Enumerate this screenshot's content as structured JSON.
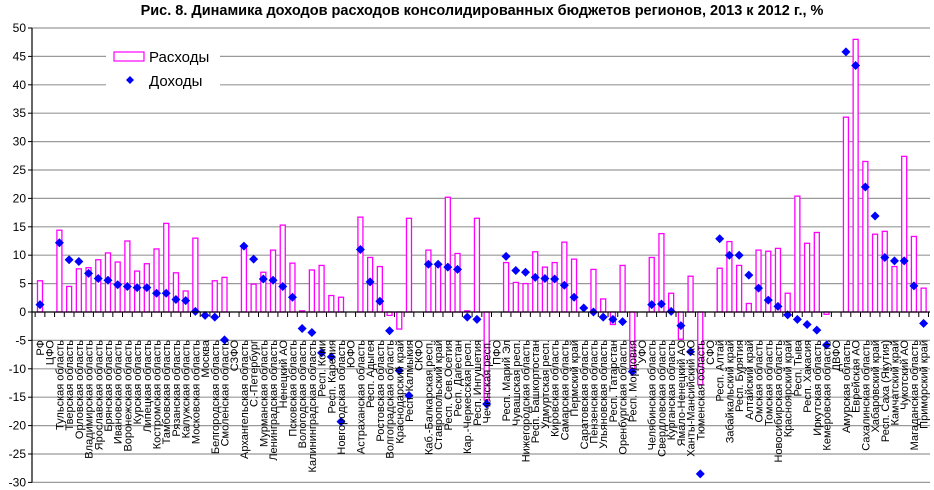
{
  "chart_data": {
    "type": "bar",
    "title": "Рис. 8. Динамика доходов  расходов консолидированных бюджетов регионов, 2013 к 2012 г., %",
    "xlabel": "",
    "ylabel": "",
    "ylim": [
      -30,
      50
    ],
    "yticks": [
      -30,
      -25,
      -20,
      -15,
      -10,
      -5,
      0,
      5,
      10,
      15,
      20,
      25,
      30,
      35,
      40,
      45,
      50
    ],
    "grid": true,
    "legend_position": "top-left",
    "colors": {
      "bars": "#FF00FF",
      "markers": "#0000FF",
      "grid": "#999999"
    },
    "categories": [
      "РФ",
      "ЦФО",
      "Тульская область",
      "Тверская область",
      "Орловская область",
      "Владимирская область",
      "Ярославская область",
      "Брянская область",
      "Ивановская область",
      "Воронежская область",
      "Курская область",
      "Липецкая область",
      "Костромская область",
      "Тамбовская область",
      "Рязанская область",
      "Калужская область",
      "Московская область",
      "Москва",
      "Белгородская область",
      "Смоленская область",
      "СЗФО",
      "Архангельская область",
      "С.-Петербург",
      "Мурманская область",
      "Ленинградская область",
      "Ненецкий АО",
      "Псковская область",
      "Вологодская область",
      "Калининградская область",
      "Респ. Коми",
      "Респ. Карелия",
      "Новгородская область",
      "ЮФО",
      "Астраханская область",
      "Респ. Адыгея",
      "Ростовская область",
      "Волгоградская область",
      "Краснодарский край",
      "Респ. Калмыкия",
      "СКФО",
      "Каб.-Балкарская респ.",
      "Ставропольский край",
      "Респ. Сев.Осетия",
      "Респ. Дагестан",
      "Кар.-Черкесская респ.",
      "Респ. Ингушетия",
      "Чеченская респ.",
      "ПФО",
      "Респ. Марий Эл",
      "Чувашская респ.",
      "Нижегородская область",
      "Респ. Башкортостан",
      "Удмуртская респ.",
      "Кировская область",
      "Самарская область",
      "Пермский край",
      "Саратовская область",
      "Пензенская область",
      "Ульяновская область",
      "Респ. Татарстан",
      "Оренбургская область",
      "Респ. Мордовия",
      "УФО",
      "Челябинская область",
      "Свердловская область",
      "Курганская область",
      "Ямало-Ненецкий АО",
      "Ханты-Мансийский АО",
      "Тюменская область",
      "СФО",
      "Респ. Алтай",
      "Забайкальский край",
      "Респ. Бурятия",
      "Алтайский край",
      "Омская область",
      "Томская область",
      "Новосибирская область",
      "Красноярский край",
      "Респ. Тыва",
      "Респ. Хакасия",
      "Иркутская область",
      "Кемеровская область",
      "ДВФО",
      "Амурская область",
      "Еврейская АО",
      "Сахалинская область",
      "Хабаровский край",
      "Респ. Саха (Якутия)",
      "Камчатский край",
      "Чукотский АО",
      "Магаданская область",
      "Приморский край"
    ],
    "series": [
      {
        "name": "Расходы",
        "kind": "bar",
        "values": [
          5.5,
          null,
          14.4,
          4.5,
          7.6,
          7.8,
          9.2,
          10.4,
          8.8,
          12.5,
          7.2,
          8.5,
          11.1,
          15.6,
          6.9,
          3.7,
          13.0,
          0,
          5.5,
          6.1,
          null,
          11.6,
          4.9,
          7.0,
          10.9,
          15.3,
          8.6,
          0.2,
          7.4,
          8.2,
          2.9,
          2.6,
          null,
          16.7,
          9.6,
          8.0,
          -0.6,
          -3.0,
          16.5,
          null,
          10.9,
          8.3,
          20.2,
          10.3,
          0.2,
          16.5,
          -15.5,
          null,
          8.7,
          5.2,
          5.0,
          10.6,
          7.9,
          8.7,
          12.3,
          9.3,
          0,
          7.5,
          2.3,
          -2.2,
          8.2,
          -10.2,
          null,
          9.6,
          13.8,
          3.3,
          -4.8,
          6.3,
          -12.8,
          null,
          7.7,
          12.4,
          8.2,
          1.5,
          10.9,
          10.7,
          11.2,
          3.3,
          20.4,
          12.1,
          14.0,
          -0.4,
          null,
          34.3,
          48.0,
          26.5,
          13.7,
          14.2,
          8.0,
          27.4,
          13.3,
          4.2
        ]
      },
      {
        "name": "Доходы",
        "kind": "marker",
        "values": [
          1.3,
          null,
          12.2,
          9.2,
          8.9,
          6.8,
          5.9,
          5.6,
          4.8,
          4.5,
          4.3,
          4.3,
          3.3,
          3.3,
          2.2,
          2.0,
          0.1,
          -0.6,
          -0.9,
          -4.9,
          null,
          11.6,
          9.3,
          5.8,
          5.6,
          4.5,
          2.6,
          -2.9,
          -3.6,
          -7.2,
          -7.9,
          -19.3,
          null,
          11.0,
          5.3,
          1.9,
          -3.3,
          -10.3,
          -14.7,
          null,
          8.4,
          8.4,
          7.9,
          7.5,
          -0.9,
          -1.3,
          -16.2,
          null,
          9.8,
          7.3,
          7.0,
          6.1,
          5.9,
          5.8,
          4.7,
          2.6,
          0.7,
          0.0,
          -0.9,
          -1.3,
          -1.7,
          -10.5,
          null,
          1.3,
          1.4,
          0.1,
          -2.4,
          -7.0,
          -28.5,
          null,
          12.9,
          10.0,
          10.0,
          6.5,
          4.2,
          2.1,
          1.0,
          -0.5,
          -1.3,
          -2.2,
          -3.2,
          -5.8,
          null,
          45.8,
          43.4,
          22.0,
          16.9,
          9.6,
          9.0,
          9.0,
          4.6,
          -2.0
        ]
      }
    ]
  }
}
